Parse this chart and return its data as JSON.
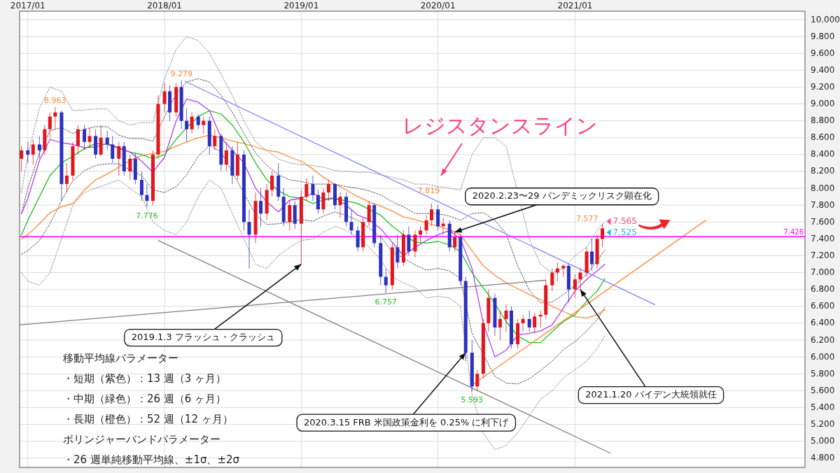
{
  "chart_data": {
    "type": "candlestick",
    "xlim": [
      "2016-12-10",
      "2022-09-07"
    ],
    "ylim": [
      4.69,
      10.1
    ],
    "xticks": [
      {
        "value": "2017-01-01",
        "label": "2017/01"
      },
      {
        "value": "2018-01-01",
        "label": "2018/01"
      },
      {
        "value": "2019-01-01",
        "label": "2019/01"
      },
      {
        "value": "2020-01-01",
        "label": "2020/01"
      },
      {
        "value": "2021-01-01",
        "label": "2021/01"
      }
    ],
    "yticks": [
      {
        "value": 4.8,
        "label": "4.800"
      },
      {
        "value": 5.0,
        "label": "5.000"
      },
      {
        "value": 5.2,
        "label": "5.200"
      },
      {
        "value": 5.4,
        "label": "5.400"
      },
      {
        "value": 5.6,
        "label": "5.600"
      },
      {
        "value": 5.8,
        "label": "5.800"
      },
      {
        "value": 6.0,
        "label": "6.000"
      },
      {
        "value": 6.2,
        "label": "6.200"
      },
      {
        "value": 6.4,
        "label": "6.400"
      },
      {
        "value": 6.6,
        "label": "6.600"
      },
      {
        "value": 6.8,
        "label": "6.800"
      },
      {
        "value": 7.0,
        "label": "7.000"
      },
      {
        "value": 7.2,
        "label": "7.200"
      },
      {
        "value": 7.4,
        "label": "7.400"
      },
      {
        "value": 7.6,
        "label": "7.600"
      },
      {
        "value": 7.8,
        "label": "7.800"
      },
      {
        "value": 8.0,
        "label": "8.000"
      },
      {
        "value": 8.2,
        "label": "8.200"
      },
      {
        "value": 8.4,
        "label": "8.400"
      },
      {
        "value": 8.6,
        "label": "8.600"
      },
      {
        "value": 8.8,
        "label": "8.800"
      },
      {
        "value": 9.0,
        "label": "9.000"
      },
      {
        "value": 9.2,
        "label": "9.200"
      },
      {
        "value": 9.4,
        "label": "9.400"
      },
      {
        "value": 9.6,
        "label": "9.600"
      },
      {
        "value": 9.8,
        "label": "9.800"
      },
      {
        "value": 10.0,
        "label": "10.000"
      }
    ],
    "grid": true,
    "x": [
      "2016-12-15",
      "2017-01-01",
      "2017-01-15",
      "2017-02-01",
      "2017-02-15",
      "2017-03-01",
      "2017-03-15",
      "2017-04-01",
      "2017-04-15",
      "2017-05-01",
      "2017-05-15",
      "2017-06-01",
      "2017-06-15",
      "2017-07-01",
      "2017-07-15",
      "2017-08-01",
      "2017-08-15",
      "2017-09-01",
      "2017-09-15",
      "2017-10-01",
      "2017-10-15",
      "2017-11-01",
      "2017-11-15",
      "2017-12-01",
      "2017-12-15",
      "2018-01-01",
      "2018-01-15",
      "2018-02-01",
      "2018-02-15",
      "2018-03-01",
      "2018-03-15",
      "2018-04-01",
      "2018-04-15",
      "2018-05-01",
      "2018-05-15",
      "2018-06-01",
      "2018-06-15",
      "2018-07-01",
      "2018-07-15",
      "2018-08-01",
      "2018-08-15",
      "2018-09-01",
      "2018-09-15",
      "2018-10-01",
      "2018-10-15",
      "2018-11-01",
      "2018-11-15",
      "2018-12-01",
      "2018-12-15",
      "2019-01-01",
      "2019-01-15",
      "2019-02-01",
      "2019-02-15",
      "2019-03-01",
      "2019-03-15",
      "2019-04-01",
      "2019-04-15",
      "2019-05-01",
      "2019-05-15",
      "2019-06-01",
      "2019-06-15",
      "2019-07-01",
      "2019-07-15",
      "2019-08-01",
      "2019-08-15",
      "2019-09-01",
      "2019-09-15",
      "2019-10-01",
      "2019-10-15",
      "2019-11-01",
      "2019-11-15",
      "2019-12-01",
      "2019-12-15",
      "2020-01-01",
      "2020-01-15",
      "2020-02-01",
      "2020-02-15",
      "2020-03-01",
      "2020-03-15",
      "2020-04-01",
      "2020-04-15",
      "2020-05-01",
      "2020-05-15",
      "2020-06-01",
      "2020-06-15",
      "2020-07-01",
      "2020-07-15",
      "2020-08-01",
      "2020-08-15",
      "2020-09-01",
      "2020-09-15",
      "2020-10-01",
      "2020-10-15",
      "2020-11-01",
      "2020-11-15",
      "2020-12-01",
      "2020-12-15",
      "2021-01-01",
      "2021-01-15",
      "2021-02-01",
      "2021-02-15",
      "2021-03-01",
      "2021-03-15"
    ],
    "ohlc": [
      [
        8.35,
        8.5,
        8.2,
        8.45
      ],
      [
        8.45,
        8.55,
        8.3,
        8.4
      ],
      [
        8.4,
        8.58,
        8.28,
        8.52
      ],
      [
        8.52,
        8.62,
        8.35,
        8.45
      ],
      [
        8.45,
        8.75,
        8.4,
        8.7
      ],
      [
        8.7,
        8.9,
        8.6,
        8.85
      ],
      [
        8.85,
        8.963,
        8.7,
        8.9
      ],
      [
        8.9,
        8.92,
        7.85,
        8.05
      ],
      [
        8.05,
        8.3,
        7.95,
        8.15
      ],
      [
        8.15,
        8.55,
        8.1,
        8.5
      ],
      [
        8.5,
        8.75,
        8.4,
        8.7
      ],
      [
        8.7,
        8.75,
        8.45,
        8.55
      ],
      [
        8.55,
        8.72,
        8.48,
        8.62
      ],
      [
        8.62,
        8.7,
        8.35,
        8.4
      ],
      [
        8.4,
        8.75,
        8.38,
        8.6
      ],
      [
        8.6,
        8.68,
        8.45,
        8.52
      ],
      [
        8.52,
        8.62,
        8.3,
        8.35
      ],
      [
        8.35,
        8.55,
        8.15,
        8.5
      ],
      [
        8.5,
        8.55,
        8.15,
        8.2
      ],
      [
        8.2,
        8.4,
        8.1,
        8.35
      ],
      [
        8.35,
        8.42,
        8.05,
        8.1
      ],
      [
        8.1,
        8.2,
        7.85,
        7.92
      ],
      [
        7.92,
        8.05,
        7.776,
        7.85
      ],
      [
        7.85,
        8.45,
        7.8,
        8.4
      ],
      [
        8.4,
        9.1,
        8.35,
        9.0
      ],
      [
        9.0,
        9.25,
        8.9,
        9.15
      ],
      [
        9.15,
        9.22,
        8.8,
        8.9
      ],
      [
        8.9,
        9.25,
        8.85,
        9.2
      ],
      [
        9.2,
        9.279,
        8.7,
        8.8
      ],
      [
        8.8,
        8.95,
        8.55,
        8.7
      ],
      [
        8.7,
        8.9,
        8.65,
        8.85
      ],
      [
        8.85,
        8.88,
        8.7,
        8.75
      ],
      [
        8.75,
        8.85,
        8.65,
        8.8
      ],
      [
        8.8,
        8.85,
        8.4,
        8.5
      ],
      [
        8.5,
        8.7,
        8.45,
        8.62
      ],
      [
        8.62,
        8.65,
        8.2,
        8.28
      ],
      [
        8.28,
        8.55,
        8.2,
        8.45
      ],
      [
        8.45,
        8.5,
        8.05,
        8.15
      ],
      [
        8.15,
        8.55,
        8.1,
        8.4
      ],
      [
        8.4,
        8.45,
        7.5,
        7.6
      ],
      [
        7.6,
        7.75,
        7.05,
        7.45
      ],
      [
        7.45,
        7.95,
        7.35,
        7.85
      ],
      [
        7.85,
        8.0,
        7.55,
        7.7
      ],
      [
        7.7,
        8.05,
        7.62,
        7.98
      ],
      [
        7.98,
        8.2,
        7.9,
        8.15
      ],
      [
        8.15,
        8.3,
        7.85,
        7.9
      ],
      [
        7.9,
        8.0,
        7.55,
        7.6
      ],
      [
        7.6,
        7.85,
        7.5,
        7.8
      ],
      [
        7.8,
        7.85,
        7.52,
        7.58
      ],
      [
        7.58,
        7.98,
        7.1,
        7.9
      ],
      [
        7.9,
        8.12,
        7.85,
        8.05
      ],
      [
        8.05,
        8.15,
        7.85,
        7.92
      ],
      [
        7.92,
        7.98,
        7.7,
        7.75
      ],
      [
        7.75,
        8.0,
        7.7,
        7.95
      ],
      [
        7.95,
        8.1,
        7.85,
        8.05
      ],
      [
        8.05,
        8.06,
        7.75,
        7.8
      ],
      [
        7.8,
        7.95,
        7.65,
        7.9
      ],
      [
        7.9,
        7.95,
        7.55,
        7.6
      ],
      [
        7.6,
        7.75,
        7.45,
        7.5
      ],
      [
        7.5,
        7.55,
        7.25,
        7.3
      ],
      [
        7.3,
        7.65,
        7.25,
        7.6
      ],
      [
        7.6,
        7.85,
        7.55,
        7.8
      ],
      [
        7.8,
        7.82,
        7.3,
        7.35
      ],
      [
        7.35,
        7.45,
        6.85,
        6.95
      ],
      [
        6.95,
        7.05,
        6.757,
        6.85
      ],
      [
        6.85,
        7.35,
        6.8,
        7.3
      ],
      [
        7.3,
        7.45,
        7.05,
        7.12
      ],
      [
        7.12,
        7.5,
        7.08,
        7.45
      ],
      [
        7.45,
        7.55,
        7.2,
        7.25
      ],
      [
        7.25,
        7.5,
        7.18,
        7.45
      ],
      [
        7.45,
        7.55,
        7.35,
        7.5
      ],
      [
        7.5,
        7.68,
        7.45,
        7.62
      ],
      [
        7.62,
        7.819,
        7.55,
        7.75
      ],
      [
        7.75,
        7.8,
        7.5,
        7.55
      ],
      [
        7.55,
        7.65,
        7.45,
        7.58
      ],
      [
        7.58,
        7.62,
        7.25,
        7.3
      ],
      [
        7.3,
        7.48,
        7.25,
        7.42
      ],
      [
        7.42,
        7.45,
        6.85,
        6.9
      ],
      [
        6.9,
        6.95,
        5.95,
        6.05
      ],
      [
        6.05,
        6.2,
        5.593,
        5.65
      ],
      [
        5.65,
        5.85,
        5.6,
        5.8
      ],
      [
        5.8,
        6.45,
        5.75,
        6.4
      ],
      [
        6.4,
        6.8,
        6.3,
        6.7
      ],
      [
        6.7,
        6.75,
        6.25,
        6.35
      ],
      [
        6.35,
        6.55,
        6.2,
        6.45
      ],
      [
        6.45,
        6.62,
        6.3,
        6.55
      ],
      [
        6.55,
        6.6,
        6.1,
        6.15
      ],
      [
        6.15,
        6.45,
        6.1,
        6.4
      ],
      [
        6.4,
        6.5,
        6.3,
        6.45
      ],
      [
        6.45,
        6.55,
        6.3,
        6.35
      ],
      [
        6.35,
        6.52,
        6.28,
        6.48
      ],
      [
        6.48,
        6.55,
        6.35,
        6.5
      ],
      [
        6.5,
        6.92,
        6.45,
        6.85
      ],
      [
        6.85,
        7.05,
        6.78,
        7.0
      ],
      [
        7.0,
        7.12,
        6.9,
        7.05
      ],
      [
        7.05,
        7.1,
        6.95,
        7.08
      ],
      [
        7.08,
        7.1,
        6.65,
        6.8
      ],
      [
        6.8,
        6.98,
        6.7,
        6.92
      ],
      [
        6.92,
        7.05,
        6.8,
        7.0
      ],
      [
        7.0,
        7.3,
        6.95,
        7.25
      ],
      [
        7.25,
        7.4,
        7.02,
        7.1
      ],
      [
        7.1,
        7.45,
        7.05,
        7.4
      ],
      [
        7.4,
        7.577,
        7.3,
        7.525
      ]
    ],
    "series": [
      {
        "type": "line",
        "color": "#9b8f9b",
        "line_style": "dotted",
        "x": [
          "2016-12-15",
          "2017-01",
          "2017-02",
          "2017-03",
          "2017-04",
          "2017-05",
          "2017-06",
          "2017-07",
          "2017-08",
          "2017-09",
          "2017-10",
          "2017-11",
          "2017-12",
          "2018-01",
          "2018-02",
          "2018-03",
          "2018-04",
          "2018-05",
          "2018-06",
          "2018-07",
          "2018-08",
          "2018-09",
          "2018-10",
          "2018-11",
          "2018-12",
          "2019-01",
          "2019-02",
          "2019-03",
          "2019-04",
          "2019-05",
          "2019-06",
          "2019-07",
          "2019-08",
          "2019-09",
          "2019-10",
          "2019-11",
          "2019-12",
          "2020-01",
          "2020-02",
          "2020-03",
          "2020-04",
          "2020-05",
          "2020-06",
          "2020-07",
          "2020-09",
          "2020-10",
          "2020-11",
          "2020-12",
          "2021-01",
          "2021-02",
          "2021-03",
          "2021-03-22"
        ],
        "values": [
          7.95,
          8.4,
          8.95,
          9.2,
          9.15,
          8.92,
          8.93,
          8.94,
          8.94,
          8.8,
          8.75,
          8.78,
          8.78,
          9.3,
          9.65,
          9.8,
          9.75,
          9.6,
          9.35,
          9.1,
          8.8,
          8.55,
          8.45,
          8.35,
          8.3,
          8.28,
          8.27,
          8.25,
          8.21,
          8.2,
          8.19,
          8.19,
          8.16,
          8.13,
          8.1,
          8.05,
          8.05,
          8.02,
          8.0,
          7.98,
          8.4,
          8.6,
          8.6,
          8.5,
          7.4,
          7.1,
          7.0,
          7.05,
          7.2,
          7.3,
          7.5,
          7.6
        ]
      },
      {
        "type": "line",
        "color": "#555555",
        "line_style": "dotted",
        "x": [
          "2016-12-15",
          "2017-01",
          "2017-02",
          "2017-03",
          "2017-04",
          "2017-05",
          "2017-06",
          "2017-07",
          "2017-08",
          "2017-09",
          "2017-10",
          "2017-11",
          "2017-12",
          "2018-01",
          "2018-02",
          "2018-03",
          "2018-04",
          "2018-05",
          "2018-06",
          "2018-07",
          "2018-08",
          "2018-09",
          "2018-10",
          "2018-11",
          "2018-12",
          "2019-01",
          "2019-02",
          "2019-03",
          "2019-04",
          "2019-05",
          "2019-06",
          "2019-07",
          "2019-08",
          "2019-09",
          "2019-10",
          "2019-11",
          "2019-12",
          "2020-01",
          "2020-02",
          "2020-03",
          "2020-04",
          "2020-05",
          "2020-06",
          "2020-07",
          "2020-08",
          "2020-09",
          "2020-10",
          "2020-11",
          "2020-12",
          "2021-01",
          "2021-02",
          "2021-03",
          "2021-03-22"
        ],
        "values": [
          7.7,
          8.0,
          8.42,
          8.68,
          8.72,
          8.65,
          8.7,
          8.73,
          8.73,
          8.63,
          8.59,
          8.59,
          8.56,
          8.85,
          9.12,
          9.26,
          9.3,
          9.26,
          9.1,
          8.9,
          8.65,
          8.42,
          8.27,
          8.16,
          8.1,
          8.08,
          8.05,
          8.05,
          8.05,
          8.02,
          8.0,
          7.97,
          7.92,
          7.84,
          7.78,
          7.7,
          7.7,
          7.7,
          7.67,
          7.62,
          7.7,
          7.71,
          7.62,
          7.46,
          7.08,
          6.79,
          6.64,
          6.65,
          6.74,
          6.85,
          6.98,
          7.14,
          7.27
        ]
      },
      {
        "type": "line",
        "color": "#555555",
        "line_style": "dotted",
        "x": [
          "2016-12-15",
          "2017-01",
          "2017-02",
          "2017-03",
          "2017-04",
          "2017-05",
          "2017-06",
          "2017-07",
          "2017-08",
          "2017-09",
          "2017-10",
          "2017-11",
          "2017-12",
          "2018-01",
          "2018-02",
          "2018-03",
          "2018-04",
          "2018-05",
          "2018-06",
          "2018-09",
          "2018-10",
          "2018-11",
          "2018-12",
          "2019-01",
          "2019-02",
          "2019-03",
          "2019-04",
          "2019-05",
          "2019-06",
          "2019-07",
          "2019-08",
          "2019-09",
          "2019-10",
          "2019-11",
          "2019-12",
          "2020-01",
          "2020-02",
          "2020-03",
          "2020-04",
          "2020-06",
          "2020-07",
          "2020-08",
          "2020-09",
          "2020-10",
          "2020-11",
          "2020-12",
          "2021-01",
          "2021-02",
          "2021-03",
          "2021-03-22"
        ],
        "values": [
          7.22,
          7.26,
          7.38,
          7.58,
          7.85,
          8.09,
          8.21,
          8.27,
          8.29,
          8.29,
          8.22,
          8.15,
          7.98,
          7.95,
          8.02,
          8.16,
          8.38,
          8.51,
          8.43,
          7.69,
          7.57,
          7.58,
          7.6,
          7.63,
          7.61,
          7.67,
          7.72,
          7.68,
          7.62,
          7.53,
          7.42,
          7.25,
          7.17,
          7.09,
          7.03,
          7.05,
          7.02,
          6.93,
          6.28,
          5.77,
          5.69,
          5.68,
          5.74,
          5.84,
          5.95,
          6.09,
          6.18,
          6.31,
          6.44,
          6.59
        ]
      },
      {
        "type": "line",
        "color": "#9b8f9b",
        "line_style": "dotted",
        "x": [
          "2016-12-15",
          "2017-01",
          "2017-02",
          "2017-03",
          "2017-04",
          "2017-05",
          "2017-06",
          "2017-07",
          "2017-08",
          "2017-09",
          "2017-10",
          "2017-11",
          "2017-12",
          "2018-01",
          "2018-02",
          "2018-03",
          "2018-04",
          "2018-05",
          "2018-06",
          "2018-07",
          "2018-08",
          "2018-09",
          "2018-10",
          "2018-11",
          "2018-12",
          "2019-01",
          "2019-02",
          "2019-03",
          "2019-04",
          "2019-05",
          "2019-06",
          "2019-07",
          "2019-08",
          "2019-09",
          "2019-10",
          "2019-11",
          "2019-12",
          "2020-01",
          "2020-02",
          "2020-03",
          "2020-04",
          "2020-05",
          "2020-06",
          "2020-07",
          "2020-08",
          "2020-09",
          "2020-10",
          "2020-11",
          "2020-12",
          "2021-01",
          "2021-02",
          "2021-03",
          "2021-03-22"
        ],
        "values": [
          7.0,
          6.9,
          6.85,
          7.0,
          7.4,
          7.8,
          7.95,
          8.0,
          8.05,
          8.1,
          8.0,
          7.9,
          7.6,
          7.5,
          7.45,
          7.6,
          7.9,
          8.1,
          8.0,
          7.7,
          7.4,
          7.1,
          7.05,
          7.2,
          7.3,
          7.38,
          7.4,
          7.48,
          7.55,
          7.5,
          7.42,
          7.3,
          7.15,
          6.95,
          6.88,
          6.82,
          6.7,
          6.72,
          6.7,
          6.6,
          5.55,
          5.1,
          4.9,
          4.95,
          5.1,
          5.3,
          5.5,
          5.6,
          5.75,
          5.85,
          5.95,
          6.1,
          6.25
        ]
      },
      {
        "type": "line",
        "color": "#ff8a3d",
        "line_style": "solid",
        "x": [
          "2016-12-15",
          "2017-01",
          "2017-02",
          "2017-03",
          "2017-04",
          "2017-05",
          "2017-06",
          "2017-07",
          "2017-08",
          "2017-09",
          "2017-10",
          "2017-11",
          "2017-12",
          "2018-01",
          "2018-02",
          "2018-03",
          "2018-04",
          "2018-05",
          "2018-06",
          "2018-07",
          "2018-08",
          "2018-09",
          "2018-10",
          "2018-11",
          "2018-12",
          "2019-01",
          "2019-02",
          "2019-03",
          "2019-04",
          "2019-05",
          "2019-06",
          "2019-07",
          "2019-08",
          "2019-09",
          "2019-10",
          "2019-11",
          "2019-12",
          "2020-01",
          "2020-02",
          "2020-03",
          "2020-04",
          "2020-05",
          "2020-06",
          "2020-07",
          "2020-08",
          "2020-09",
          "2020-10",
          "2020-11",
          "2020-12",
          "2021-01",
          "2021-02",
          "2021-03",
          "2021-03-22"
        ],
        "values": [
          7.4,
          7.45,
          7.58,
          7.71,
          7.78,
          7.82,
          7.98,
          8.1,
          8.17,
          8.25,
          8.33,
          8.39,
          8.41,
          8.44,
          8.5,
          8.55,
          8.6,
          8.63,
          8.6,
          8.56,
          8.53,
          8.49,
          8.45,
          8.43,
          8.37,
          8.32,
          8.23,
          8.13,
          8.05,
          7.98,
          7.9,
          7.84,
          7.79,
          7.73,
          7.66,
          7.63,
          7.59,
          7.55,
          7.51,
          7.45,
          7.26,
          7.08,
          6.97,
          6.88,
          6.81,
          6.74,
          6.68,
          6.6,
          6.54,
          6.48,
          6.46,
          6.5,
          6.56
        ]
      },
      {
        "type": "line",
        "color": "#22c022",
        "line_style": "solid",
        "x": [
          "2016-12-15",
          "2017-01",
          "2017-02",
          "2017-03",
          "2017-04",
          "2017-05",
          "2017-06",
          "2017-07",
          "2017-08",
          "2017-09",
          "2017-10",
          "2017-11",
          "2017-12",
          "2018-01",
          "2018-02",
          "2018-03",
          "2018-04",
          "2018-05",
          "2018-06",
          "2018-07",
          "2018-08",
          "2018-09",
          "2018-10",
          "2018-11",
          "2018-12",
          "2019-01",
          "2019-02",
          "2019-03",
          "2019-04",
          "2019-05",
          "2019-06",
          "2019-07",
          "2019-08",
          "2019-09",
          "2019-10",
          "2019-11",
          "2019-12",
          "2020-01",
          "2020-02",
          "2020-03",
          "2020-04",
          "2020-05",
          "2020-06",
          "2020-07",
          "2020-08",
          "2020-09",
          "2020-10",
          "2020-11",
          "2020-12",
          "2021-01",
          "2021-02",
          "2021-03",
          "2021-03-22"
        ],
        "values": [
          7.45,
          7.62,
          7.9,
          8.15,
          8.3,
          8.38,
          8.47,
          8.53,
          8.52,
          8.47,
          8.43,
          8.4,
          8.35,
          8.4,
          8.58,
          8.72,
          8.85,
          8.92,
          8.88,
          8.75,
          8.55,
          8.3,
          8.1,
          7.97,
          7.9,
          7.88,
          7.82,
          7.86,
          7.88,
          7.85,
          7.82,
          7.75,
          7.68,
          7.55,
          7.45,
          7.36,
          7.35,
          7.37,
          7.33,
          7.25,
          7.0,
          6.82,
          6.63,
          6.42,
          6.25,
          6.17,
          6.17,
          6.3,
          6.42,
          6.5,
          6.66,
          6.78,
          6.93
        ]
      },
      {
        "type": "line",
        "color": "#b040f0",
        "line_style": "solid",
        "x": [
          "2016-12-15",
          "2017-01",
          "2017-02",
          "2017-03",
          "2017-04",
          "2017-05",
          "2017-06",
          "2017-07",
          "2017-08",
          "2017-09",
          "2017-10",
          "2017-11",
          "2017-12",
          "2018-01",
          "2018-02",
          "2018-03",
          "2018-04",
          "2018-05",
          "2018-06",
          "2018-07",
          "2018-08",
          "2018-09",
          "2018-10",
          "2018-11",
          "2018-12",
          "2019-01",
          "2019-02",
          "2019-03",
          "2019-04",
          "2019-05",
          "2019-06",
          "2019-07",
          "2019-08",
          "2019-09",
          "2019-10",
          "2019-11",
          "2019-12",
          "2020-01",
          "2020-02",
          "2020-03",
          "2020-04",
          "2020-05",
          "2020-06",
          "2020-07",
          "2020-08",
          "2020-09",
          "2020-10",
          "2020-11",
          "2020-12",
          "2021-01",
          "2021-02",
          "2021-03",
          "2021-03-22"
        ],
        "values": [
          7.7,
          7.88,
          8.33,
          8.58,
          8.54,
          8.52,
          8.48,
          8.49,
          8.53,
          8.48,
          8.43,
          8.32,
          8.19,
          8.37,
          8.8,
          9.06,
          9.02,
          8.92,
          8.6,
          8.45,
          8.3,
          8.0,
          7.84,
          7.72,
          7.86,
          7.88,
          7.94,
          7.87,
          7.89,
          7.8,
          7.68,
          7.63,
          7.52,
          7.36,
          7.2,
          7.3,
          7.38,
          7.45,
          7.5,
          7.4,
          7.05,
          6.4,
          6.0,
          6.08,
          6.26,
          6.28,
          6.31,
          6.38,
          6.58,
          6.78,
          6.92,
          7.02,
          7.1
        ]
      },
      {
        "type": "line",
        "color": "#7f86ff",
        "line_style": "solid",
        "x": [
          "2018-02-24",
          "2021-08-02"
        ],
        "values": [
          9.27,
          6.62
        ]
      },
      {
        "type": "line",
        "color": "#ff8a3d",
        "line_style": "solid",
        "x": [
          "2020-03-27",
          "2021-12-16"
        ],
        "values": [
          5.65,
          7.62
        ]
      },
      {
        "type": "line",
        "color": "#808080",
        "line_style": "solid",
        "x": [
          "2017-12-16",
          "2021-04-05"
        ],
        "values": [
          7.38,
          4.86
        ]
      },
      {
        "type": "line",
        "color": "#808080",
        "line_style": "solid",
        "x": [
          "2016-12-10",
          "2020-10-14"
        ],
        "values": [
          6.38,
          6.91
        ]
      }
    ],
    "ref_lines": [
      {
        "axis": "y",
        "value": 7.426,
        "label": "7.426",
        "color": "#ff00ff"
      }
    ],
    "annotations": [
      {
        "text": "9.279",
        "x": "2018-02-15",
        "y": 9.279
      },
      {
        "text": "8.963",
        "x": "2017-03-15",
        "y": 8.963
      },
      {
        "text": "7.776",
        "x": "2017-11-15",
        "y": 7.776
      },
      {
        "text": "6.757",
        "x": "2019-08-15",
        "y": 6.757
      },
      {
        "text": "7.819",
        "x": "2019-12-15",
        "y": 7.819
      },
      {
        "text": "5.593",
        "x": "2020-04-01",
        "y": 5.593
      },
      {
        "text": "7.577",
        "x": "2021-03-15",
        "y": 7.577
      },
      {
        "text": "7.565",
        "x": "2021-03-15",
        "y": 7.565
      },
      {
        "text": "7.525",
        "x": "2021-03-15",
        "y": 7.525
      },
      "レジスタンスライン",
      {
        "text": "2019.1.3 フラッシュ・クラッシュ",
        "x": "2019-01-01",
        "y": 7.1
      },
      {
        "text": "2020.2.23〜29 パンデミックリスク顕在化",
        "x": "2020-02-15",
        "y": 7.48
      },
      {
        "text": "2020.3.15 FRB 米国政策金利を 0.25% に利下げ",
        "x": "2020-03-15",
        "y": 6.05
      },
      {
        "text": "2021.1.20 バイデン大統領就任",
        "x": "2021-01-15",
        "y": 6.8
      },
      "移動平均線パラメーター",
      "・短期（紫色）：13 週（3 ヶ月）",
      "・中期（緑色）：26 週（6 ヶ月）",
      "・長期（橙色）：52 週（12 ヶ月）",
      "ボリンジャーバンドパラメーター",
      "・26 週単純移動平均線、±1σ、±2σ"
    ]
  }
}
